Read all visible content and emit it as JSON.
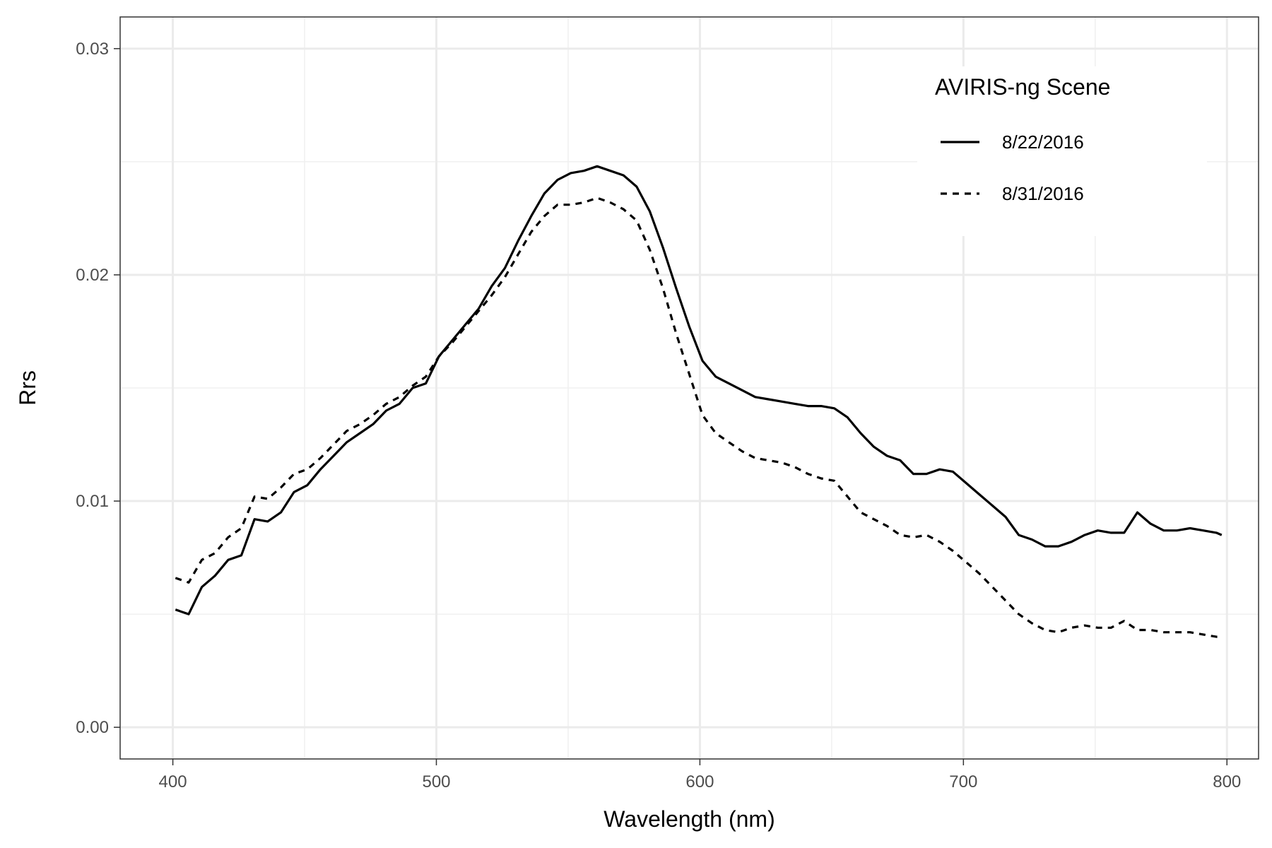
{
  "chart_data": {
    "type": "line",
    "xlabel": "Wavelength (nm)",
    "ylabel": "Rrs",
    "xlim": [
      380,
      812
    ],
    "ylim": [
      -0.0014,
      0.0314
    ],
    "x_ticks": [
      400,
      500,
      600,
      700,
      800
    ],
    "x_tick_labels": [
      "400",
      "500",
      "600",
      "700",
      "800"
    ],
    "y_ticks": [
      0.0,
      0.01,
      0.02,
      0.03
    ],
    "y_tick_labels": [
      "0.00",
      "0.01",
      "0.02",
      "0.03"
    ],
    "x_minor_ticks": [
      450,
      550,
      650,
      750
    ],
    "y_minor_ticks": [
      0.005,
      0.015,
      0.025
    ],
    "grid": true,
    "legend": {
      "title": "AVIRIS-ng Scene",
      "position": "top-right"
    },
    "series": [
      {
        "name": "8/22/2016",
        "line_style": "solid",
        "color": "#000000",
        "x": [
          401,
          406,
          411,
          416,
          421,
          426,
          431,
          436,
          441,
          446,
          451,
          456,
          461,
          466,
          471,
          476,
          481,
          486,
          491,
          496,
          501,
          506,
          511,
          516,
          521,
          526,
          531,
          536,
          541,
          546,
          551,
          556,
          561,
          566,
          571,
          576,
          581,
          586,
          591,
          596,
          601,
          606,
          611,
          616,
          621,
          626,
          631,
          636,
          641,
          646,
          651,
          656,
          661,
          666,
          671,
          676,
          681,
          686,
          691,
          696,
          701,
          706,
          711,
          716,
          721,
          726,
          731,
          736,
          741,
          746,
          751,
          756,
          761,
          766,
          771,
          776,
          781,
          786,
          791,
          796
        ],
        "y": [
          0.0052,
          0.005,
          0.0062,
          0.0067,
          0.0074,
          0.0076,
          0.0092,
          0.0091,
          0.0095,
          0.0104,
          0.0107,
          0.0114,
          0.012,
          0.0126,
          0.013,
          0.0134,
          0.014,
          0.0143,
          0.015,
          0.0152,
          0.0164,
          0.0171,
          0.0178,
          0.0185,
          0.0195,
          0.0203,
          0.0215,
          0.0226,
          0.0236,
          0.0242,
          0.0245,
          0.0246,
          0.0248,
          0.0246,
          0.0244,
          0.0239,
          0.0228,
          0.0212,
          0.0194,
          0.0177,
          0.0162,
          0.0155,
          0.0152,
          0.0149,
          0.0146,
          0.0145,
          0.0144,
          0.0143,
          0.0142,
          0.0142,
          0.0141,
          0.0137,
          0.013,
          0.0124,
          0.012,
          0.0118,
          0.0112,
          0.0112,
          0.0114,
          0.0113,
          0.0108,
          0.0103,
          0.0098,
          0.0093,
          0.0085,
          0.0083,
          0.008,
          0.008,
          0.0082,
          0.0085,
          0.0087,
          0.0086,
          0.0086,
          0.0095,
          0.009,
          0.0087,
          0.0087,
          0.0088,
          0.0087,
          0.0086
        ],
        "x_end": 798,
        "y_end": 0.0085
      },
      {
        "name": "8/31/2016",
        "line_style": "dashed",
        "color": "#000000",
        "x": [
          401,
          406,
          411,
          416,
          421,
          426,
          431,
          436,
          441,
          446,
          451,
          456,
          461,
          466,
          471,
          476,
          481,
          486,
          491,
          496,
          501,
          506,
          511,
          516,
          521,
          526,
          531,
          536,
          541,
          546,
          551,
          556,
          561,
          566,
          571,
          576,
          581,
          586,
          591,
          596,
          601,
          606,
          611,
          616,
          621,
          626,
          631,
          636,
          641,
          646,
          651,
          656,
          661,
          666,
          671,
          676,
          681,
          686,
          691,
          696,
          701,
          706,
          711,
          716,
          721,
          726,
          731,
          736,
          741,
          746,
          751,
          756,
          761,
          766,
          771,
          776,
          781,
          786,
          791,
          796
        ],
        "y": [
          0.0066,
          0.0064,
          0.0074,
          0.0077,
          0.0084,
          0.0088,
          0.0102,
          0.0101,
          0.0106,
          0.0112,
          0.0114,
          0.0119,
          0.0125,
          0.0131,
          0.0134,
          0.0138,
          0.0143,
          0.0146,
          0.0151,
          0.0155,
          0.0164,
          0.017,
          0.0177,
          0.0184,
          0.0191,
          0.0199,
          0.0209,
          0.0219,
          0.0226,
          0.0231,
          0.0231,
          0.0232,
          0.0234,
          0.0232,
          0.0229,
          0.0224,
          0.0211,
          0.0194,
          0.0174,
          0.0156,
          0.0138,
          0.013,
          0.0126,
          0.0122,
          0.0119,
          0.0118,
          0.0117,
          0.0115,
          0.0112,
          0.011,
          0.0109,
          0.0102,
          0.0095,
          0.0092,
          0.0089,
          0.0085,
          0.0084,
          0.0085,
          0.0082,
          0.0078,
          0.0073,
          0.0068,
          0.0062,
          0.0056,
          0.005,
          0.0046,
          0.0043,
          0.0042,
          0.0044,
          0.0045,
          0.0044,
          0.0044,
          0.0047,
          0.0043,
          0.0043,
          0.0042,
          0.0042,
          0.0042,
          0.0041,
          0.004
        ],
        "x_end": 798,
        "y_end": 0.004
      }
    ]
  }
}
